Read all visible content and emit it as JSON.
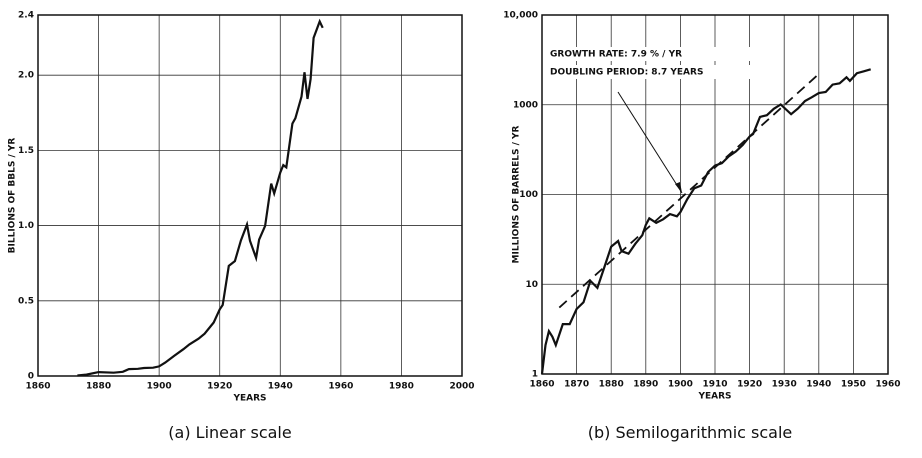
{
  "chart_data": [
    {
      "type": "line",
      "caption_label": "(a)",
      "caption": "Linear scale",
      "xlabel": "YEARS",
      "ylabel": "BILLIONS OF BBLS / YR",
      "xlim": [
        1860,
        2000
      ],
      "xticks": [
        1860,
        1880,
        1900,
        1920,
        1940,
        1960,
        1980,
        2000
      ],
      "ylim": [
        0,
        2.4
      ],
      "yticks": [
        0,
        0.5,
        {
          "value": 1,
          "label": "1.0"
        },
        1.5,
        {
          "value": 2,
          "label": "2.0"
        },
        2.4
      ],
      "log": false,
      "grid": true,
      "color": "#111111",
      "x": [
        1873,
        1876,
        1880,
        1885,
        1888,
        1890,
        1893,
        1895,
        1898,
        1900,
        1902,
        1905,
        1908,
        1910,
        1913,
        1915,
        1918,
        1920,
        1921,
        1923,
        1925,
        1927,
        1929,
        1930,
        1932,
        1933,
        1935,
        1937,
        1938,
        1940,
        1941,
        1942,
        1944,
        1945,
        1947,
        1948,
        1949,
        1950,
        1951,
        1953,
        1954
      ],
      "values": [
        0.003,
        0.009,
        0.026,
        0.022,
        0.028,
        0.046,
        0.048,
        0.053,
        0.055,
        0.064,
        0.089,
        0.135,
        0.178,
        0.21,
        0.248,
        0.281,
        0.356,
        0.443,
        0.472,
        0.732,
        0.764,
        0.901,
        1.007,
        0.898,
        0.785,
        0.906,
        0.997,
        1.279,
        1.214,
        1.353,
        1.402,
        1.387,
        1.678,
        1.714,
        1.857,
        2.02,
        1.842,
        1.974,
        2.248,
        2.357,
        2.315
      ]
    },
    {
      "type": "line",
      "caption_label": "(b)",
      "caption": "Semilogarithmic scale",
      "xlabel": "YEARS",
      "ylabel": "MILLIONS OF BARRELS / YR",
      "annotations": [
        "GROWTH RATE: 7.9 % / YR",
        "DOUBLING PERIOD: 8.7 YEARS"
      ],
      "xlim": [
        1860,
        1960
      ],
      "xticks": [
        1860,
        1870,
        1880,
        1890,
        1900,
        1910,
        1920,
        1930,
        1940,
        1950,
        1960
      ],
      "ylim": [
        1,
        10000
      ],
      "yticks": [
        1,
        10,
        100,
        1000,
        {
          "value": 10000,
          "label": "10,000"
        }
      ],
      "log": true,
      "grid": true,
      "color": "#111111",
      "x": [
        1860,
        1861,
        1862,
        1863,
        1864,
        1866,
        1868,
        1870,
        1872,
        1874,
        1876,
        1878,
        1880,
        1882,
        1883,
        1885,
        1887,
        1889,
        1890,
        1891,
        1893,
        1895,
        1897,
        1899,
        1900,
        1902,
        1904,
        1906,
        1908,
        1910,
        1912,
        1914,
        1916,
        1918,
        1920,
        1921,
        1923,
        1925,
        1927,
        1929,
        1931,
        1932,
        1934,
        1936,
        1938,
        1940,
        1942,
        1944,
        1946,
        1948,
        1949,
        1951,
        1953,
        1955
      ],
      "values": [
        1,
        2.1,
        3.0,
        2.6,
        2.1,
        3.6,
        3.6,
        5.3,
        6.3,
        10.9,
        9.1,
        15.4,
        26.3,
        30.3,
        23.4,
        21.9,
        28.3,
        35.2,
        45.8,
        54.3,
        48.4,
        52.9,
        60.5,
        57.1,
        63.6,
        88.8,
        117,
        126,
        178,
        210,
        223,
        266,
        301,
        356,
        443,
        472,
        732,
        764,
        901,
        1007,
        851,
        785,
        908,
        1100,
        1214,
        1353,
        1387,
        1678,
        1734,
        2020,
        1842,
        2248,
        2357,
        2484
      ],
      "trend": {
        "x": [
          1865,
          1940
        ],
        "values": [
          5.5,
          2200
        ]
      }
    }
  ]
}
